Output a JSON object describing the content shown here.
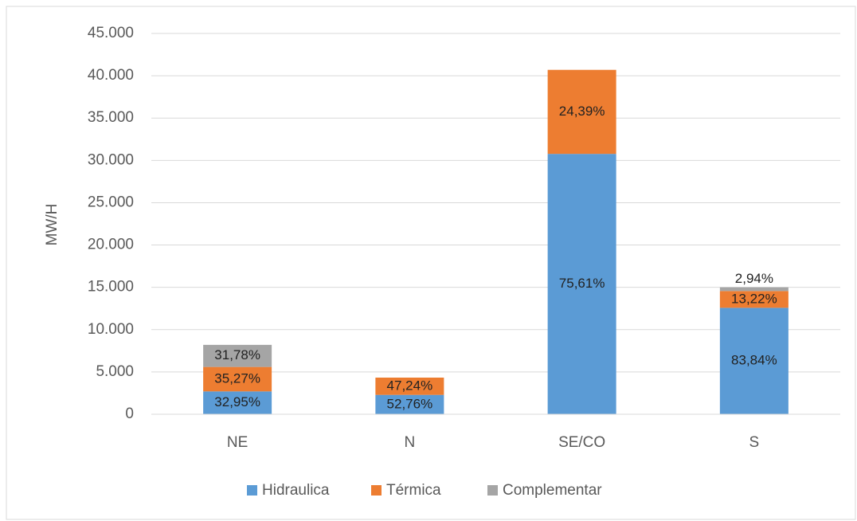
{
  "chart_data": {
    "type": "stacked_bar",
    "y_label": "MW/H",
    "categories": [
      "NE",
      "N",
      "SE/CO",
      "S"
    ],
    "series": [
      {
        "name": "Hidraulica",
        "color": "#5b9bd5",
        "values": [
          2700,
          2290,
          30770,
          12580
        ],
        "labels": [
          "32,95%",
          "52,76%",
          "75,61%",
          "83,84%"
        ]
      },
      {
        "name": "Térmica",
        "color": "#ed7d31",
        "values": [
          2890,
          2040,
          9930,
          1980
        ],
        "labels": [
          "35,27%",
          "47,24%",
          "24,39%",
          "13,22%"
        ]
      },
      {
        "name": "Complementar",
        "color": "#a5a5a5",
        "values": [
          2610,
          null,
          null,
          440
        ],
        "labels": [
          "31,78%",
          null,
          null,
          "2,94%"
        ]
      }
    ],
    "ylim": [
      0,
      45000
    ],
    "yticks": [
      0,
      {
        "value": 5000,
        "label": "5.000"
      },
      {
        "value": 10000,
        "label": "10.000"
      },
      {
        "value": 15000,
        "label": "15.000"
      },
      {
        "value": 20000,
        "label": "20.000"
      },
      {
        "value": 25000,
        "label": "25.000"
      },
      {
        "value": 30000,
        "label": "30.000"
      },
      {
        "value": 35000,
        "label": "35.000"
      },
      {
        "value": 40000,
        "label": "40.000"
      },
      {
        "value": 45000,
        "label": "45.000"
      }
    ],
    "grid": true,
    "legend": "bottom"
  }
}
